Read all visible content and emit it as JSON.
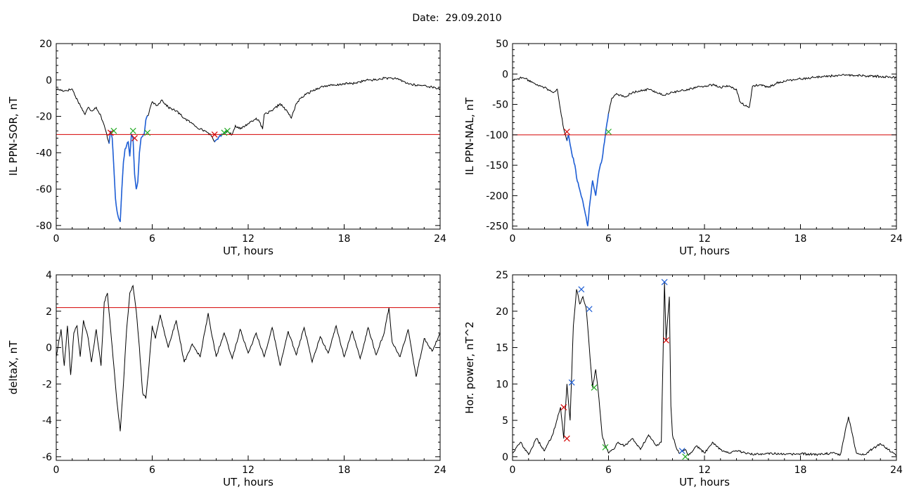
{
  "header": {
    "date_label": "Date:",
    "date_value": "29.09.2010"
  },
  "colors": {
    "trace": "#000000",
    "threshold": "#d40000",
    "highlight": "#1f5fd6",
    "cross_red": "#d40000",
    "cross_green": "#22aa22",
    "cross_blue": "#1f5fd6"
  },
  "chart_data": [
    {
      "id": "il-sor",
      "type": "line",
      "xlabel": "UT, hours",
      "ylabel": "IL PPN-SOR, nT",
      "xlim": [
        0,
        24
      ],
      "ylim": [
        -82,
        20
      ],
      "xticks": [
        0,
        6,
        12,
        18,
        24
      ],
      "yticks": [
        -80,
        -60,
        -40,
        -20,
        0,
        20
      ],
      "threshold": -30,
      "x": [
        0,
        0.5,
        1,
        1.2,
        1.5,
        1.8,
        2,
        2.2,
        2.5,
        2.8,
        3,
        3.1,
        3.2,
        3.3,
        3.4,
        3.5,
        3.6,
        3.7,
        3.8,
        3.9,
        4,
        4.1,
        4.2,
        4.3,
        4.4,
        4.5,
        4.6,
        4.7,
        4.8,
        4.9,
        5,
        5.1,
        5.2,
        5.3,
        5.4,
        5.5,
        5.6,
        5.8,
        6,
        6.3,
        6.6,
        7,
        7.5,
        8,
        8.5,
        9,
        9.3,
        9.5,
        9.7,
        9.9,
        10,
        10.2,
        10.4,
        10.6,
        10.8,
        11,
        11.2,
        11.5,
        12,
        12.5,
        12.7,
        12.9,
        13,
        13.5,
        14,
        14.5,
        14.7,
        15,
        15.3,
        15.6,
        16,
        16.5,
        17,
        17.5,
        18,
        18.5,
        19,
        19.5,
        20,
        20.5,
        21,
        21.5,
        22,
        22.5,
        23,
        23.5,
        24
      ],
      "y": [
        -5,
        -6,
        -5,
        -9,
        -14,
        -19,
        -15,
        -17,
        -15,
        -20,
        -25,
        -28,
        -32,
        -35,
        -28,
        -32,
        -48,
        -65,
        -72,
        -76,
        -78,
        -60,
        -45,
        -38,
        -36,
        -34,
        -42,
        -30,
        -32,
        -52,
        -60,
        -56,
        -40,
        -32,
        -31,
        -30,
        -22,
        -18,
        -12,
        -14,
        -11,
        -15,
        -17,
        -21,
        -24,
        -27,
        -28,
        -29,
        -31,
        -34,
        -33,
        -31,
        -30,
        -28,
        -29,
        -30,
        -25,
        -27,
        -24,
        -21,
        -23,
        -27,
        -19,
        -17,
        -13,
        -18,
        -21,
        -13,
        -10,
        -8,
        -6,
        -4,
        -3,
        -3,
        -2,
        -2,
        -1,
        0,
        0,
        1,
        1,
        0,
        -2,
        -3,
        -3,
        -4,
        -5
      ],
      "highlight_ranges": [
        [
          3.3,
          5.7
        ],
        [
          9.9,
          10.6
        ]
      ],
      "markers": [
        {
          "x": 3.4,
          "y": -29,
          "color": "red"
        },
        {
          "x": 3.6,
          "y": -28,
          "color": "green"
        },
        {
          "x": 4.9,
          "y": -32,
          "color": "red"
        },
        {
          "x": 4.8,
          "y": -28,
          "color": "green"
        },
        {
          "x": 5.7,
          "y": -29,
          "color": "green"
        },
        {
          "x": 9.9,
          "y": -30,
          "color": "red"
        },
        {
          "x": 10.5,
          "y": -29,
          "color": "green"
        },
        {
          "x": 10.7,
          "y": -28,
          "color": "green"
        }
      ]
    },
    {
      "id": "il-nal",
      "type": "line",
      "xlabel": "UT, hours",
      "ylabel": "IL PPN-NAL, nT",
      "xlim": [
        0,
        24
      ],
      "ylim": [
        -255,
        50
      ],
      "xticks": [
        0,
        6,
        12,
        18,
        24
      ],
      "yticks": [
        -250,
        -200,
        -150,
        -100,
        -50,
        0,
        50
      ],
      "threshold": -100,
      "x": [
        0,
        0.3,
        0.6,
        1,
        1.5,
        2,
        2.5,
        2.8,
        3,
        3.2,
        3.4,
        3.5,
        3.7,
        3.9,
        4,
        4.2,
        4.4,
        4.6,
        4.7,
        4.8,
        5,
        5.2,
        5.4,
        5.6,
        5.8,
        6,
        6.2,
        6.5,
        7,
        7.5,
        8,
        8.5,
        9,
        9.5,
        10,
        10.5,
        11,
        11.5,
        12,
        12.5,
        13,
        13.5,
        14,
        14.2,
        14.5,
        14.8,
        15,
        15.5,
        16,
        16.5,
        17,
        18,
        19,
        20,
        21,
        22,
        23,
        24
      ],
      "y": [
        -10,
        -8,
        -6,
        -10,
        -18,
        -22,
        -30,
        -25,
        -60,
        -90,
        -110,
        -100,
        -130,
        -150,
        -170,
        -190,
        -210,
        -235,
        -250,
        -220,
        -175,
        -200,
        -160,
        -140,
        -100,
        -65,
        -40,
        -32,
        -38,
        -30,
        -28,
        -25,
        -30,
        -35,
        -30,
        -28,
        -25,
        -22,
        -20,
        -18,
        -22,
        -20,
        -25,
        -45,
        -52,
        -55,
        -20,
        -18,
        -22,
        -15,
        -12,
        -8,
        -5,
        -3,
        -2,
        -3,
        -4,
        -6
      ],
      "highlight_ranges": [
        [
          3.4,
          6.0
        ]
      ],
      "markers": [
        {
          "x": 3.4,
          "y": -95,
          "color": "red"
        },
        {
          "x": 6.0,
          "y": -95,
          "color": "green"
        }
      ]
    },
    {
      "id": "deltax",
      "type": "line",
      "xlabel": "UT, hours",
      "ylabel": "deltaX, nT",
      "xlim": [
        0,
        24
      ],
      "ylim": [
        -6.2,
        4
      ],
      "xticks": [
        0,
        6,
        12,
        18,
        24
      ],
      "yticks": [
        -6,
        -4,
        -2,
        0,
        2,
        4
      ],
      "threshold": 2.2,
      "x": [
        0,
        0.3,
        0.5,
        0.7,
        0.9,
        1.1,
        1.3,
        1.5,
        1.7,
        2,
        2.2,
        2.5,
        2.8,
        3,
        3.2,
        3.4,
        3.6,
        3.8,
        4,
        4.2,
        4.4,
        4.6,
        4.8,
        5,
        5.2,
        5.4,
        5.6,
        5.8,
        6,
        6.2,
        6.5,
        7,
        7.5,
        8,
        8.5,
        9,
        9.5,
        9.7,
        10,
        10.5,
        11,
        11.5,
        12,
        12.5,
        13,
        13.5,
        14,
        14.5,
        15,
        15.5,
        16,
        16.5,
        17,
        17.5,
        18,
        18.5,
        19,
        19.5,
        20,
        20.5,
        20.8,
        21,
        21.5,
        22,
        22.5,
        23,
        23.5,
        24
      ],
      "y": [
        -0.5,
        1,
        -1,
        1.2,
        -1.5,
        0.8,
        1.2,
        -0.5,
        1.5,
        0.5,
        -0.8,
        1,
        -1,
        2.5,
        3,
        1,
        -1,
        -3,
        -4.6,
        -2,
        1,
        3,
        3.4,
        2,
        0,
        -2.5,
        -2.8,
        -1,
        1.2,
        0.5,
        1.8,
        0,
        1.5,
        -0.8,
        0.2,
        -0.5,
        1.9,
        0.8,
        -0.5,
        0.8,
        -0.6,
        1,
        -0.3,
        0.8,
        -0.5,
        1.1,
        -1,
        0.9,
        -0.4,
        1.1,
        -0.8,
        0.6,
        -0.3,
        1.2,
        -0.5,
        0.9,
        -0.6,
        1.1,
        -0.4,
        0.8,
        2.2,
        0.3,
        -0.5,
        1,
        -1.6,
        0.5,
        -0.2,
        0.8
      ],
      "highlight_ranges": [],
      "markers": []
    },
    {
      "id": "hor-power",
      "type": "line",
      "xlabel": "UT, hours",
      "ylabel": "Hor. power, nT^2",
      "xlim": [
        0,
        24
      ],
      "ylim": [
        -0.5,
        25
      ],
      "xticks": [
        0,
        6,
        12,
        18,
        24
      ],
      "yticks": [
        0,
        5,
        10,
        15,
        20,
        25
      ],
      "threshold": 25,
      "x": [
        0,
        0.5,
        1,
        1.5,
        2,
        2.5,
        3,
        3.2,
        3.4,
        3.6,
        3.8,
        4,
        4.2,
        4.4,
        4.6,
        4.8,
        5,
        5.2,
        5.4,
        5.6,
        5.8,
        6,
        6.3,
        6.6,
        7,
        7.5,
        8,
        8.5,
        9,
        9.3,
        9.5,
        9.6,
        9.7,
        9.8,
        9.9,
        10,
        10.2,
        10.4,
        10.6,
        10.8,
        11,
        11.5,
        12,
        12.5,
        13,
        13.5,
        14,
        15,
        16,
        17,
        18,
        19,
        20,
        20.5,
        21,
        21.5,
        22,
        23,
        24
      ],
      "y": [
        0.5,
        2,
        0.3,
        2.5,
        0.8,
        3,
        6.8,
        2.5,
        10,
        5,
        18,
        23,
        21,
        22,
        20.5,
        15,
        9.5,
        12,
        8,
        3,
        1.5,
        0.5,
        1,
        2,
        1.5,
        2.5,
        1,
        3,
        1.5,
        2,
        24,
        16,
        19,
        22,
        7,
        3,
        1.5,
        0.5,
        0.8,
        1,
        0.2,
        1.5,
        0.5,
        2,
        1,
        0.5,
        0.8,
        0.3,
        0.5,
        0.3,
        0.4,
        0.3,
        0.5,
        0.3,
        5.5,
        0.5,
        0.3,
        1.8,
        0.2
      ],
      "highlight_ranges": [],
      "markers": [
        {
          "x": 3.2,
          "y": 6.8,
          "color": "red"
        },
        {
          "x": 3.4,
          "y": 2.5,
          "color": "red"
        },
        {
          "x": 3.7,
          "y": 10.2,
          "color": "blue"
        },
        {
          "x": 4.3,
          "y": 23,
          "color": "blue"
        },
        {
          "x": 4.8,
          "y": 20.3,
          "color": "blue"
        },
        {
          "x": 5.1,
          "y": 9.5,
          "color": "green"
        },
        {
          "x": 5.8,
          "y": 1.3,
          "color": "green"
        },
        {
          "x": 9.5,
          "y": 24,
          "color": "blue"
        },
        {
          "x": 9.6,
          "y": 16,
          "color": "red"
        },
        {
          "x": 10.6,
          "y": 0.8,
          "color": "blue"
        },
        {
          "x": 10.8,
          "y": 0,
          "color": "green"
        }
      ]
    }
  ]
}
